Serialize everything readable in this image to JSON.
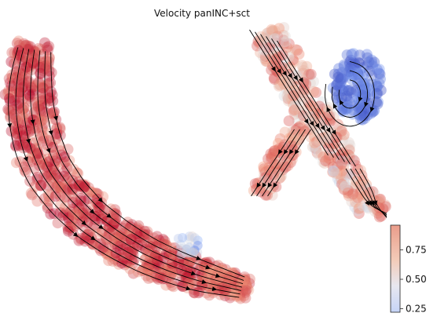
{
  "chart_data": {
    "type": "scatter",
    "title": "Velocity panINC+sct",
    "xlabel": "",
    "ylabel": "",
    "grid": false,
    "axes_visible": false,
    "overlay": "velocity streamlines with arrowheads",
    "colormap": "coolwarm",
    "colorbar": {
      "range": [
        0.22,
        0.96
      ],
      "ticks": [
        0.25,
        0.5,
        0.75
      ],
      "tick_labels": [
        "0.25",
        "0.50",
        "0.75"
      ],
      "placement": "bottom-right"
    },
    "clusters": [
      {
        "region": "left elongated trajectory",
        "value_range": [
          0.65,
          0.96
        ],
        "dominant": 0.88
      },
      {
        "region": "right upper cluster",
        "value_range": [
          0.22,
          0.85
        ],
        "dominant": 0.7
      },
      {
        "region": "right upper blob",
        "value_range": [
          0.22,
          0.45
        ],
        "dominant": 0.3
      }
    ]
  }
}
